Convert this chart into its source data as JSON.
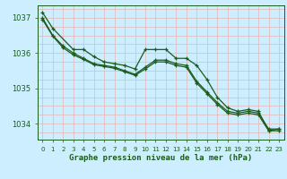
{
  "title": "Graphe pression niveau de la mer (hPa)",
  "bg_color": "#cceeff",
  "grid_color_v": "#e8b4b4",
  "grid_color_h": "#e8b4b4",
  "line_color": "#1a5c1a",
  "marker_color": "#1a5c1a",
  "xlim": [
    -0.5,
    23.5
  ],
  "ylim": [
    1033.55,
    1037.35
  ],
  "yticks": [
    1034,
    1035,
    1036,
    1037
  ],
  "xticks": [
    0,
    1,
    2,
    3,
    4,
    5,
    6,
    7,
    8,
    9,
    10,
    11,
    12,
    13,
    14,
    15,
    16,
    17,
    18,
    19,
    20,
    21,
    22,
    23
  ],
  "series": [
    [
      1037.15,
      1036.7,
      null,
      1036.1,
      1036.1,
      1035.9,
      1035.75,
      1035.7,
      1035.65,
      1035.55,
      1036.1,
      1036.1,
      1036.1,
      1035.85,
      1035.85,
      1035.65,
      1035.25,
      1034.75,
      1034.45,
      1034.35,
      1034.4,
      1034.35,
      1033.8,
      1033.85
    ],
    [
      1037.0,
      1036.5,
      1036.2,
      1036.0,
      1035.85,
      1035.7,
      1035.65,
      1035.6,
      1035.5,
      1035.4,
      1035.6,
      1035.8,
      1035.8,
      1035.7,
      1035.65,
      1035.2,
      1034.9,
      1034.6,
      1034.35,
      1034.3,
      1034.35,
      1034.3,
      1033.85,
      1033.85
    ],
    [
      1036.95,
      1036.48,
      1036.15,
      1035.95,
      1035.82,
      1035.67,
      1035.62,
      1035.57,
      1035.47,
      1035.37,
      1035.55,
      1035.75,
      1035.75,
      1035.65,
      1035.6,
      1035.15,
      1034.85,
      1034.55,
      1034.3,
      1034.25,
      1034.3,
      1034.25,
      1033.8,
      1033.8
    ]
  ]
}
